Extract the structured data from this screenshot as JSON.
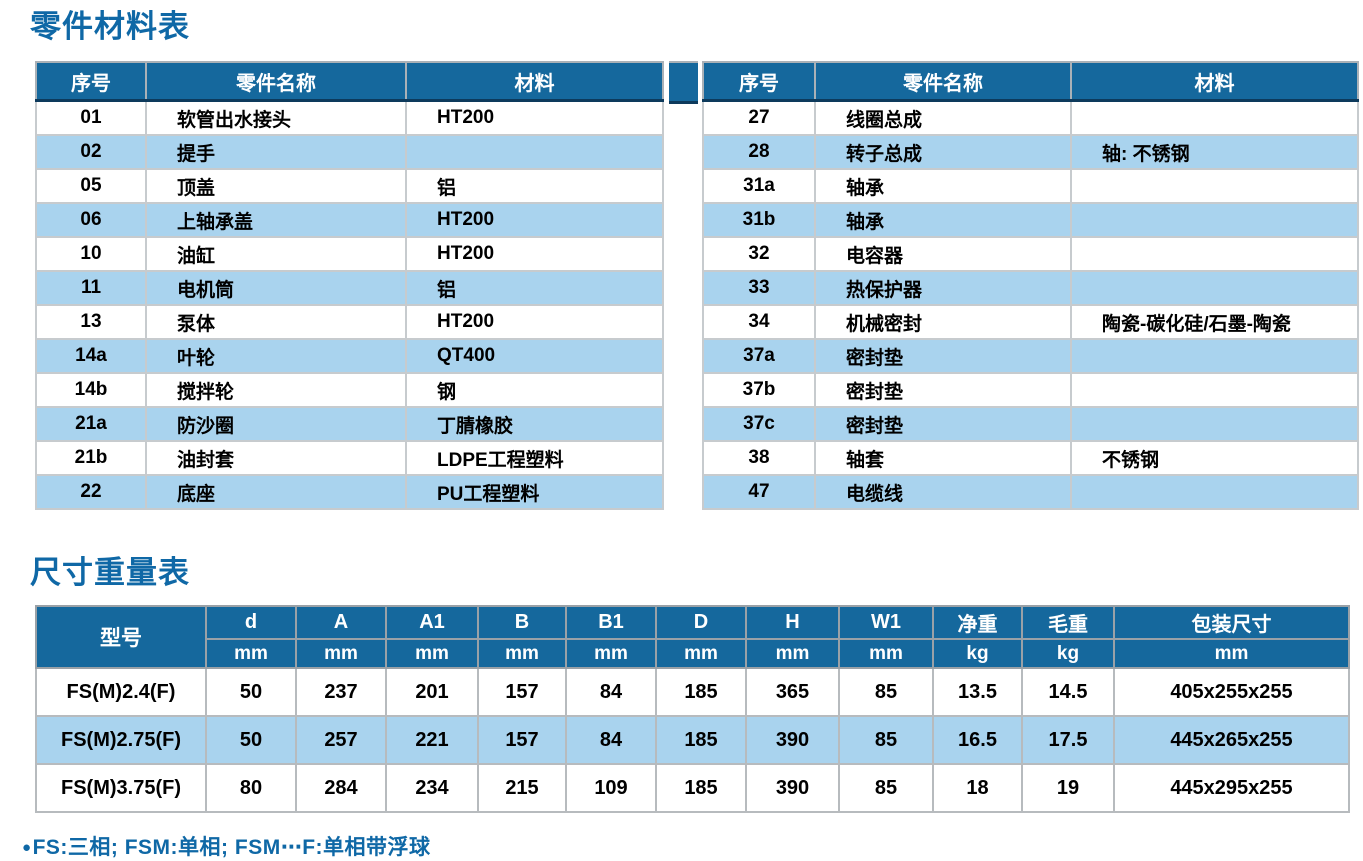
{
  "titles": {
    "parts": "零件材料表",
    "dims": "尺寸重量表"
  },
  "note": {
    "bullet": "●",
    "text": "FS:三相; FSM:单相; FSM⋯F:单相带浮球"
  },
  "colors": {
    "header_blue": "#15689d",
    "stripe_blue": "#a9d3ee",
    "title_blue": "#0f68a6"
  },
  "parts_table": {
    "headers": [
      "序号",
      "零件名称",
      "材料"
    ],
    "left_rows": [
      {
        "no": "01",
        "name": "软管出水接头",
        "material": "HT200"
      },
      {
        "no": "02",
        "name": "提手",
        "material": ""
      },
      {
        "no": "05",
        "name": "顶盖",
        "material": "铝"
      },
      {
        "no": "06",
        "name": "上轴承盖",
        "material": "HT200"
      },
      {
        "no": "10",
        "name": "油缸",
        "material": "HT200"
      },
      {
        "no": "11",
        "name": "电机筒",
        "material": "铝"
      },
      {
        "no": "13",
        "name": "泵体",
        "material": "HT200"
      },
      {
        "no": "14a",
        "name": "叶轮",
        "material": "QT400"
      },
      {
        "no": "14b",
        "name": "搅拌轮",
        "material": "钢"
      },
      {
        "no": "21a",
        "name": "防沙圈",
        "material": "丁腈橡胶"
      },
      {
        "no": "21b",
        "name": "油封套",
        "material": "LDPE工程塑料"
      },
      {
        "no": "22",
        "name": "底座",
        "material": "PU工程塑料"
      }
    ],
    "right_rows": [
      {
        "no": "27",
        "name": "线圈总成",
        "material": ""
      },
      {
        "no": "28",
        "name": "转子总成",
        "material": "轴: 不锈钢"
      },
      {
        "no": "31a",
        "name": "轴承",
        "material": ""
      },
      {
        "no": "31b",
        "name": "轴承",
        "material": ""
      },
      {
        "no": "32",
        "name": "电容器",
        "material": ""
      },
      {
        "no": "33",
        "name": "热保护器",
        "material": ""
      },
      {
        "no": "34",
        "name": "机械密封",
        "material": "陶瓷-碳化硅/石墨-陶瓷"
      },
      {
        "no": "37a",
        "name": "密封垫",
        "material": ""
      },
      {
        "no": "37b",
        "name": "密封垫",
        "material": ""
      },
      {
        "no": "37c",
        "name": "密封垫",
        "material": ""
      },
      {
        "no": "38",
        "name": "轴套",
        "material": "不锈钢"
      },
      {
        "no": "47",
        "name": "电缆线",
        "material": ""
      }
    ]
  },
  "dim_table": {
    "model_header": "型号",
    "columns": [
      {
        "label": "d",
        "unit": "mm"
      },
      {
        "label": "A",
        "unit": "mm"
      },
      {
        "label": "A1",
        "unit": "mm"
      },
      {
        "label": "B",
        "unit": "mm"
      },
      {
        "label": "B1",
        "unit": "mm"
      },
      {
        "label": "D",
        "unit": "mm"
      },
      {
        "label": "H",
        "unit": "mm"
      },
      {
        "label": "W1",
        "unit": "mm"
      },
      {
        "label": "净重",
        "unit": "kg"
      },
      {
        "label": "毛重",
        "unit": "kg"
      },
      {
        "label": "包装尺寸",
        "unit": "mm"
      }
    ],
    "rows": [
      {
        "model": "FS(M)2.4(F)",
        "values": [
          "50",
          "237",
          "201",
          "157",
          "84",
          "185",
          "365",
          "85",
          "13.5",
          "14.5",
          "405x255x255"
        ]
      },
      {
        "model": "FS(M)2.75(F)",
        "values": [
          "50",
          "257",
          "221",
          "157",
          "84",
          "185",
          "390",
          "85",
          "16.5",
          "17.5",
          "445x265x255"
        ]
      },
      {
        "model": "FS(M)3.75(F)",
        "values": [
          "80",
          "284",
          "234",
          "215",
          "109",
          "185",
          "390",
          "85",
          "18",
          "19",
          "445x295x255"
        ]
      }
    ]
  }
}
